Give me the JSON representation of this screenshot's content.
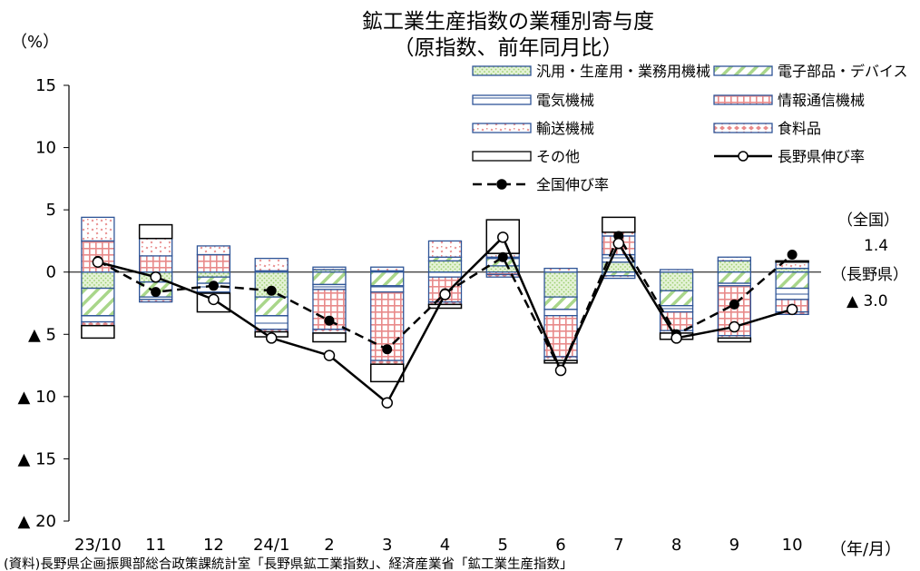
{
  "chart_data": {
    "type": "bar",
    "title_lines": [
      "鉱工業生産指数の業種別寄与度",
      "（原指数、前年同月比）"
    ],
    "y_unit_label": "（%）",
    "x_unit_label": "（年/月）",
    "source": "(資料)長野県企画振興部総合政策課統計室「長野県鉱工業指数」、経済産業省「鉱工業生産指数」",
    "ylim": [
      -20,
      15
    ],
    "y_ticks": [
      15,
      10,
      5,
      0,
      -5,
      -10,
      -15,
      -20
    ],
    "y_tick_labels": [
      "15",
      "10",
      "5",
      "0",
      "▲ 5",
      "▲ 10",
      "▲ 15",
      "▲ 20"
    ],
    "categories": [
      "23/10",
      "11",
      "12",
      "24/1",
      "2",
      "3",
      "4",
      "5",
      "6",
      "7",
      "8",
      "9",
      "10"
    ],
    "series": [
      {
        "name": "汎用・生産用・業務用機械",
        "kind": "bar",
        "pattern": "dots-green",
        "values": [
          -1.3,
          -0.8,
          -0.4,
          -2.0,
          0.2,
          0.1,
          0.9,
          0.5,
          -2.0,
          0.8,
          -1.5,
          0.9,
          0.3
        ]
      },
      {
        "name": "電子部品・デバイス",
        "kind": "bar",
        "pattern": "diag-green",
        "values": [
          -2.2,
          -1.2,
          -0.5,
          -1.5,
          -1.0,
          -1.1,
          0.3,
          0.6,
          -1.0,
          -0.3,
          -1.2,
          -0.9,
          -1.3
        ]
      },
      {
        "name": "電気機械",
        "kind": "bar",
        "pattern": "lines-blue",
        "values": [
          -0.5,
          -0.2,
          -0.7,
          -1.1,
          -0.4,
          -0.5,
          -0.4,
          0.1,
          -0.5,
          0.6,
          -0.5,
          -0.2,
          -0.9
        ]
      },
      {
        "name": "情報通信機械",
        "kind": "bar",
        "pattern": "grid-red",
        "values": [
          2.5,
          1.3,
          1.4,
          0.1,
          -3.2,
          -5.5,
          -2.0,
          -0.2,
          -3.3,
          1.5,
          -1.5,
          -4.0,
          -1.0
        ]
      },
      {
        "name": "輸送機械",
        "kind": "bar",
        "pattern": "confetti-red",
        "values": [
          1.9,
          1.4,
          0.7,
          1.0,
          0.2,
          0.3,
          1.3,
          0.3,
          0.3,
          0.3,
          0.2,
          0.3,
          0.5
        ]
      },
      {
        "name": "食料品",
        "kind": "bar",
        "pattern": "diamonds-red",
        "values": [
          -0.3,
          -0.2,
          -0.1,
          -0.2,
          -0.3,
          -0.3,
          -0.2,
          -0.2,
          -0.3,
          -0.2,
          -0.2,
          -0.2,
          -0.2
        ]
      },
      {
        "name": "その他",
        "kind": "bar",
        "pattern": "white",
        "values": [
          -1.0,
          1.1,
          -1.5,
          -0.4,
          -0.7,
          -1.4,
          -0.3,
          2.7,
          -0.2,
          1.2,
          -0.5,
          -0.3,
          0.1
        ]
      },
      {
        "name": "長野県伸び率",
        "kind": "line",
        "values": [
          0.8,
          -0.4,
          -2.2,
          -5.3,
          -6.7,
          -10.5,
          -1.8,
          2.8,
          -7.9,
          2.3,
          -5.3,
          -4.4,
          -3.0
        ]
      },
      {
        "name": "全国伸び率",
        "kind": "line",
        "values": [
          0.9,
          -1.6,
          -1.1,
          -1.5,
          -3.9,
          -6.2,
          -1.7,
          1.2,
          -7.9,
          2.9,
          -5.0,
          -2.6,
          1.4
        ]
      }
    ],
    "annotations": [
      {
        "label": "（全国）",
        "value_text": "1.4"
      },
      {
        "label": "（長野県）",
        "value_text": "▲ 3.0"
      }
    ],
    "legend_placement": "top-right",
    "colors": {
      "green": "#9ccf6f",
      "green_light": "#dcedc8",
      "blue": "#2f5597",
      "red": "#e58c8c",
      "frame": "#000000"
    }
  }
}
